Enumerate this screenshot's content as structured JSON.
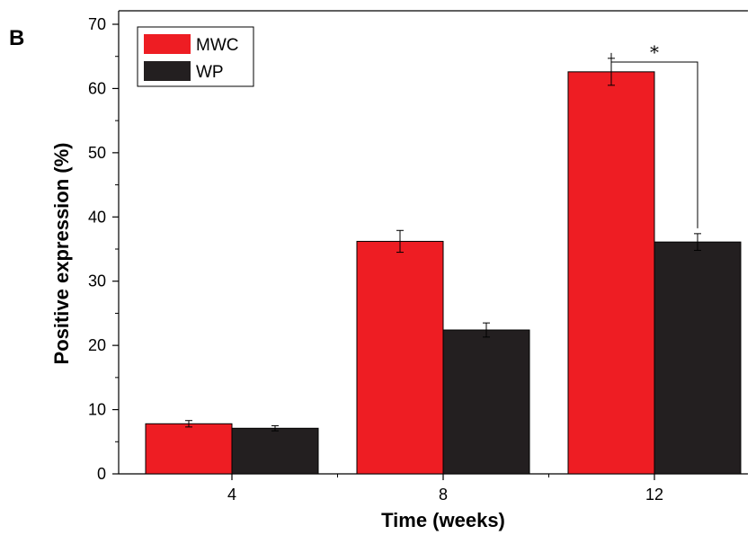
{
  "panel_label": "B",
  "colors": {
    "MWC": "#ee1d23",
    "WP": "#231f20"
  },
  "chart_data": {
    "type": "bar",
    "categories": [
      "4",
      "8",
      "12"
    ],
    "series": [
      {
        "name": "MWC",
        "values": [
          7.8,
          36.2,
          62.6
        ],
        "errors": [
          0.5,
          1.7,
          2.1
        ]
      },
      {
        "name": "WP",
        "values": [
          7.1,
          22.4,
          36.1
        ],
        "errors": [
          0.4,
          1.1,
          1.3
        ]
      }
    ],
    "xlabel": "Time (weeks)",
    "ylabel": "Positive expression (%)",
    "ylim": [
      0,
      70
    ],
    "yticks": [
      "0",
      "10",
      "20",
      "30",
      "40",
      "50",
      "60",
      "70"
    ],
    "legend_position": "top-left",
    "grid": false,
    "annotations": [
      {
        "text": "*",
        "between": [
          "12 MWC",
          "12 WP"
        ]
      }
    ]
  }
}
